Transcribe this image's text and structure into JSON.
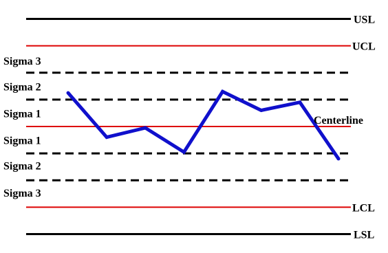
{
  "chart_data": {
    "type": "line",
    "title": "",
    "xlabel": "",
    "ylabel": "",
    "ylim": [
      0,
      9
    ],
    "limit_lines": [
      {
        "name": "USL",
        "value": 8.5,
        "color": "#000000",
        "style": "solid-thick"
      },
      {
        "name": "UCL",
        "value": 7.5,
        "color": "#dd0000",
        "style": "solid"
      },
      {
        "name": "Sigma 3 upper boundary",
        "value": 6.5,
        "color": "#000000",
        "style": "dashed"
      },
      {
        "name": "Sigma 2 upper boundary",
        "value": 5.5,
        "color": "#000000",
        "style": "dashed"
      },
      {
        "name": "Centerline",
        "value": 4.5,
        "color": "#dd0000",
        "style": "solid"
      },
      {
        "name": "Sigma 2 lower boundary",
        "value": 3.5,
        "color": "#000000",
        "style": "dashed"
      },
      {
        "name": "Sigma 3 lower boundary",
        "value": 2.5,
        "color": "#000000",
        "style": "dashed"
      },
      {
        "name": "LCL",
        "value": 1.5,
        "color": "#dd0000",
        "style": "solid"
      },
      {
        "name": "LSL",
        "value": 0.5,
        "color": "#000000",
        "style": "solid-thick"
      }
    ],
    "line_labels": {
      "USL": "USL",
      "UCL": "UCL",
      "Centerline": "Centerline",
      "LCL": "LCL",
      "LSL": "LSL"
    },
    "zone_labels": [
      {
        "text": "Sigma 3",
        "value": 6.95
      },
      {
        "text": "Sigma 2",
        "value": 6.0
      },
      {
        "text": "Sigma 1",
        "value": 5.0
      },
      {
        "text": "Sigma 1",
        "value": 4.0
      },
      {
        "text": "Sigma 2",
        "value": 3.05
      },
      {
        "text": "Sigma 3",
        "value": 2.05
      }
    ],
    "series": [
      {
        "color": "#1010cc",
        "x": [
          1,
          2,
          3,
          4,
          5,
          6,
          7,
          8
        ],
        "values": [
          5.75,
          4.1,
          4.45,
          3.55,
          5.8,
          5.1,
          5.4,
          3.3
        ]
      }
    ]
  }
}
